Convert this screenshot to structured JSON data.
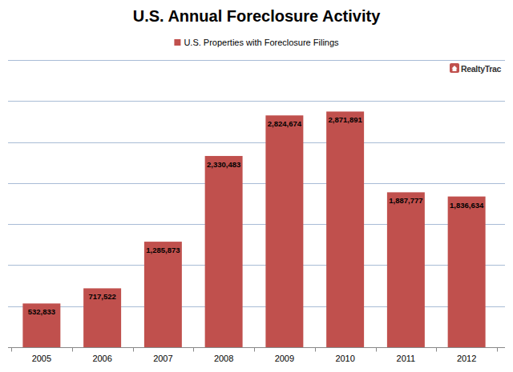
{
  "chart_data": {
    "type": "bar",
    "title": "U.S. Annual Foreclosure Activity",
    "annotation": "RealtyTrac",
    "categories": [
      "2005",
      "2006",
      "2007",
      "2008",
      "2009",
      "2010",
      "2011",
      "2012"
    ],
    "series": [
      {
        "name": "U.S. Properties with Foreclosure Filings",
        "color": "#c0504d",
        "values": [
          532833,
          717522,
          1285873,
          2330483,
          2824674,
          2871891,
          1887777,
          1836634
        ],
        "value_labels": [
          "532,833",
          "717,522",
          "1,285,873",
          "2,330,483",
          "2,824,674",
          "2,871,891",
          "1,887,777",
          "1,836,634"
        ]
      }
    ],
    "ylim": [
      0,
      3500000
    ],
    "yticks": [
      0,
      500000,
      1000000,
      1500000,
      2000000,
      2500000,
      3000000,
      3500000
    ],
    "grid": true,
    "legend": "top",
    "data_labels": true,
    "tick_labels": "x"
  }
}
